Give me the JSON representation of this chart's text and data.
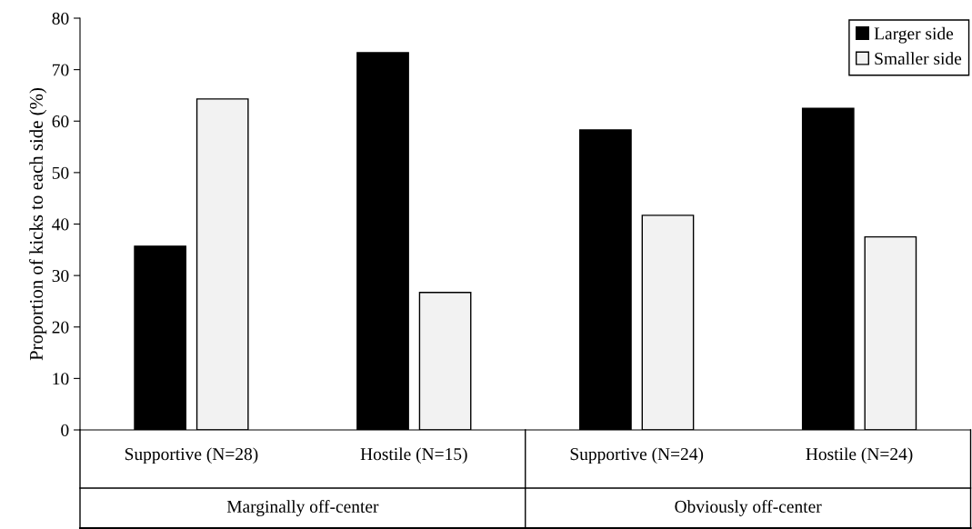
{
  "chart_data": {
    "type": "bar",
    "ylabel": "Proportion of kicks to each side (%)",
    "categories": [
      "Supportive (N=28)",
      "Hostile (N=15)",
      "Supportive (N=24)",
      "Hostile (N=24)"
    ],
    "series": [
      {
        "name": "Larger side",
        "color": "#000000",
        "values": [
          35.7,
          73.3,
          58.3,
          62.5
        ]
      },
      {
        "name": "Smaller side",
        "color": "#f2f2f2",
        "values": [
          64.3,
          26.7,
          41.7,
          37.5
        ]
      }
    ],
    "annotations": [
      "Marginally off-center",
      "Obviously off-center"
    ],
    "ylim": [
      0,
      80
    ],
    "yticks": [
      0,
      10,
      20,
      30,
      40,
      50,
      60,
      70,
      80
    ],
    "grid": false,
    "legend": "top right"
  }
}
